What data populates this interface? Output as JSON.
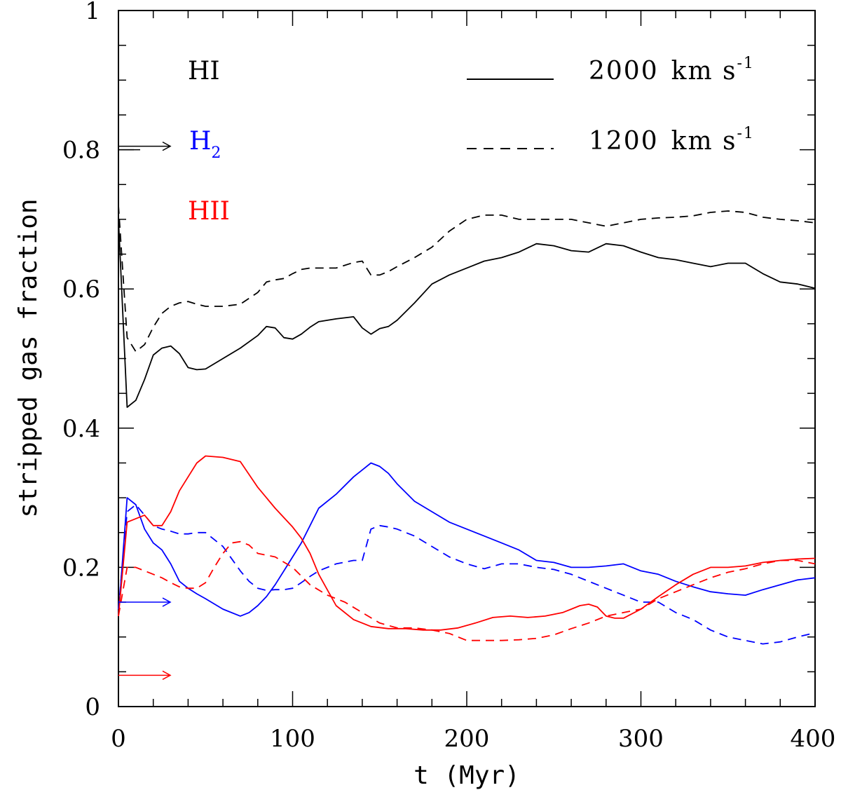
{
  "chart_data": {
    "type": "line",
    "title": "",
    "xlabel": "t  (Myr)",
    "ylabel": "stripped gas fraction",
    "xlim": [
      0,
      400
    ],
    "ylim": [
      0,
      1
    ],
    "x_ticks": [
      "0",
      "100",
      "200",
      "300",
      "400"
    ],
    "y_ticks": [
      "0",
      "0.2",
      "0.4",
      "0.6",
      "0.8",
      "1"
    ],
    "colors": {
      "HI": "#000000",
      "H2": "#0000ff",
      "HII": "#ff0000"
    },
    "species_legend": [
      {
        "name": "HI",
        "label": "HI",
        "color": "#000000"
      },
      {
        "name": "H2",
        "label": "H",
        "sub": "2",
        "color": "#0000ff"
      },
      {
        "name": "HII",
        "label": "HII",
        "color": "#ff0000"
      }
    ],
    "style_legend": [
      {
        "style": "solid",
        "velocity": "2000",
        "unit": "km s",
        "sup": "-1"
      },
      {
        "style": "dashed",
        "velocity": "1200",
        "unit": "km s",
        "sup": "-1"
      }
    ],
    "initial_arrows": [
      {
        "species": "HI",
        "value": 0.805
      },
      {
        "species": "H2",
        "value": 0.15
      },
      {
        "species": "HII",
        "value": 0.045
      }
    ],
    "series": [
      {
        "name": "HI 2000 km/s",
        "species": "HI",
        "style": "solid",
        "x": [
          0,
          5,
          10,
          15,
          20,
          25,
          30,
          35,
          40,
          45,
          50,
          60,
          70,
          80,
          85,
          90,
          95,
          100,
          105,
          110,
          115,
          125,
          135,
          140,
          145,
          150,
          155,
          160,
          170,
          180,
          190,
          200,
          210,
          220,
          230,
          240,
          250,
          260,
          270,
          280,
          290,
          300,
          310,
          320,
          330,
          340,
          350,
          360,
          370,
          380,
          390,
          400
        ],
        "y": [
          0.7,
          0.43,
          0.44,
          0.47,
          0.505,
          0.515,
          0.518,
          0.507,
          0.487,
          0.484,
          0.485,
          0.5,
          0.515,
          0.533,
          0.546,
          0.544,
          0.53,
          0.528,
          0.535,
          0.545,
          0.553,
          0.557,
          0.56,
          0.544,
          0.535,
          0.543,
          0.546,
          0.555,
          0.58,
          0.607,
          0.62,
          0.63,
          0.64,
          0.645,
          0.653,
          0.665,
          0.662,
          0.655,
          0.653,
          0.665,
          0.662,
          0.653,
          0.645,
          0.642,
          0.637,
          0.632,
          0.637,
          0.637,
          0.622,
          0.61,
          0.607,
          0.601
        ]
      },
      {
        "name": "HI 1200 km/s",
        "species": "HI",
        "style": "dashed",
        "x": [
          0,
          5,
          10,
          15,
          20,
          25,
          30,
          35,
          40,
          45,
          50,
          60,
          70,
          80,
          85,
          90,
          95,
          100,
          105,
          110,
          115,
          125,
          135,
          140,
          145,
          150,
          155,
          160,
          170,
          180,
          190,
          200,
          210,
          220,
          230,
          240,
          250,
          260,
          270,
          280,
          290,
          300,
          310,
          320,
          330,
          340,
          350,
          360,
          370,
          380,
          390,
          400
        ],
        "y": [
          0.72,
          0.53,
          0.51,
          0.52,
          0.545,
          0.565,
          0.575,
          0.58,
          0.582,
          0.578,
          0.575,
          0.575,
          0.578,
          0.595,
          0.61,
          0.613,
          0.615,
          0.622,
          0.628,
          0.63,
          0.63,
          0.63,
          0.638,
          0.64,
          0.62,
          0.62,
          0.625,
          0.632,
          0.645,
          0.66,
          0.683,
          0.7,
          0.706,
          0.706,
          0.7,
          0.7,
          0.7,
          0.7,
          0.695,
          0.69,
          0.695,
          0.7,
          0.702,
          0.703,
          0.705,
          0.71,
          0.712,
          0.71,
          0.703,
          0.7,
          0.698,
          0.695
        ]
      },
      {
        "name": "H2 2000 km/s",
        "species": "H2",
        "style": "solid",
        "x": [
          0,
          5,
          10,
          15,
          20,
          25,
          30,
          35,
          40,
          45,
          50,
          60,
          70,
          75,
          80,
          85,
          90,
          95,
          100,
          105,
          110,
          115,
          125,
          135,
          140,
          145,
          150,
          155,
          160,
          170,
          180,
          190,
          200,
          210,
          220,
          230,
          240,
          250,
          260,
          270,
          280,
          290,
          300,
          310,
          320,
          330,
          340,
          350,
          360,
          370,
          380,
          390,
          400
        ],
        "y": [
          0.13,
          0.3,
          0.29,
          0.255,
          0.235,
          0.225,
          0.205,
          0.18,
          0.17,
          0.162,
          0.155,
          0.14,
          0.13,
          0.135,
          0.145,
          0.158,
          0.175,
          0.195,
          0.215,
          0.235,
          0.26,
          0.285,
          0.305,
          0.33,
          0.34,
          0.35,
          0.345,
          0.335,
          0.32,
          0.295,
          0.28,
          0.265,
          0.255,
          0.245,
          0.235,
          0.225,
          0.21,
          0.207,
          0.2,
          0.2,
          0.202,
          0.205,
          0.195,
          0.19,
          0.18,
          0.172,
          0.165,
          0.162,
          0.16,
          0.168,
          0.175,
          0.182,
          0.185
        ]
      },
      {
        "name": "H2 1200 km/s",
        "species": "H2",
        "style": "dashed",
        "x": [
          0,
          5,
          10,
          15,
          20,
          25,
          30,
          35,
          40,
          45,
          50,
          60,
          70,
          75,
          80,
          85,
          90,
          95,
          100,
          105,
          110,
          115,
          125,
          135,
          140,
          145,
          150,
          155,
          160,
          170,
          180,
          190,
          200,
          210,
          220,
          230,
          240,
          250,
          260,
          270,
          280,
          290,
          300,
          310,
          320,
          330,
          340,
          350,
          360,
          370,
          380,
          390,
          400
        ],
        "y": [
          0.14,
          0.28,
          0.29,
          0.275,
          0.26,
          0.255,
          0.252,
          0.248,
          0.248,
          0.25,
          0.25,
          0.23,
          0.195,
          0.18,
          0.17,
          0.167,
          0.168,
          0.168,
          0.17,
          0.178,
          0.187,
          0.195,
          0.205,
          0.21,
          0.21,
          0.255,
          0.26,
          0.258,
          0.255,
          0.245,
          0.23,
          0.215,
          0.205,
          0.198,
          0.205,
          0.205,
          0.2,
          0.197,
          0.19,
          0.18,
          0.17,
          0.16,
          0.15,
          0.15,
          0.135,
          0.125,
          0.11,
          0.1,
          0.095,
          0.09,
          0.093,
          0.1,
          0.106
        ]
      },
      {
        "name": "HII 2000 km/s",
        "species": "HII",
        "style": "solid",
        "x": [
          0,
          5,
          10,
          15,
          20,
          25,
          30,
          35,
          40,
          45,
          50,
          60,
          70,
          80,
          90,
          100,
          105,
          110,
          115,
          125,
          135,
          145,
          155,
          165,
          175,
          185,
          195,
          205,
          215,
          225,
          235,
          245,
          255,
          260,
          265,
          270,
          275,
          280,
          285,
          290,
          300,
          310,
          320,
          330,
          340,
          350,
          360,
          370,
          380,
          390,
          400
        ],
        "y": [
          0.13,
          0.265,
          0.27,
          0.275,
          0.26,
          0.26,
          0.28,
          0.31,
          0.33,
          0.35,
          0.36,
          0.358,
          0.352,
          0.315,
          0.285,
          0.258,
          0.242,
          0.22,
          0.19,
          0.145,
          0.125,
          0.115,
          0.112,
          0.112,
          0.11,
          0.11,
          0.113,
          0.12,
          0.128,
          0.13,
          0.128,
          0.13,
          0.135,
          0.14,
          0.145,
          0.147,
          0.143,
          0.13,
          0.127,
          0.127,
          0.14,
          0.158,
          0.175,
          0.19,
          0.2,
          0.2,
          0.202,
          0.207,
          0.21,
          0.212,
          0.213
        ]
      },
      {
        "name": "HII 1200 km/s",
        "species": "HII",
        "style": "dashed",
        "x": [
          0,
          5,
          10,
          15,
          20,
          25,
          30,
          35,
          40,
          45,
          50,
          55,
          60,
          65,
          70,
          75,
          80,
          90,
          100,
          110,
          120,
          130,
          140,
          150,
          160,
          170,
          180,
          190,
          200,
          210,
          220,
          230,
          240,
          250,
          260,
          270,
          280,
          290,
          300,
          310,
          320,
          330,
          340,
          350,
          360,
          370,
          380,
          390,
          400
        ],
        "y": [
          0.13,
          0.2,
          0.2,
          0.195,
          0.19,
          0.185,
          0.178,
          0.172,
          0.17,
          0.17,
          0.178,
          0.2,
          0.22,
          0.235,
          0.237,
          0.232,
          0.22,
          0.215,
          0.2,
          0.175,
          0.16,
          0.15,
          0.135,
          0.12,
          0.113,
          0.113,
          0.11,
          0.105,
          0.095,
          0.095,
          0.095,
          0.096,
          0.098,
          0.103,
          0.112,
          0.12,
          0.13,
          0.135,
          0.14,
          0.155,
          0.165,
          0.175,
          0.185,
          0.193,
          0.198,
          0.205,
          0.21,
          0.21,
          0.205
        ]
      }
    ]
  }
}
